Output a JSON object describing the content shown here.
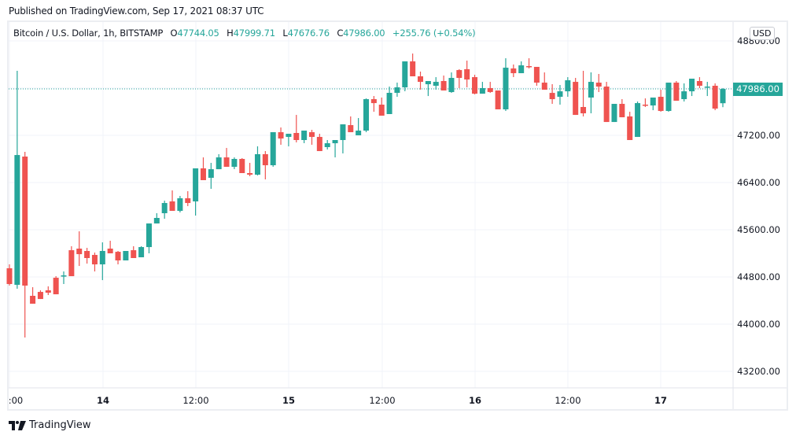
{
  "header": {
    "published": "Published on TradingView.com, Sep 17, 2021 08:37 UTC"
  },
  "legend": {
    "symbol": "Bitcoin / U.S. Dollar, 1h, BITSTAMP",
    "open_label": "O",
    "open": "47744.05",
    "high_label": "H",
    "high": "47999.71",
    "low_label": "L",
    "low": "47676.76",
    "close_label": "C",
    "close": "47986.00",
    "change": "+255.76 (+0.54%)"
  },
  "axis": {
    "currency_badge": "USD",
    "current_price": "47986.00",
    "y_ticks": [
      "48800.00",
      "48000.00",
      "47200.00",
      "46400.00",
      "45600.00",
      "44800.00",
      "44000.00",
      "43200.00"
    ],
    "x_ticks": [
      ":00",
      "14",
      "12:00",
      "15",
      "12:00",
      "16",
      "12:00",
      "17"
    ]
  },
  "footer": {
    "brand": "TradingView"
  },
  "colors": {
    "up": "#26a69a",
    "down": "#ef5350",
    "grid": "#f0f3fa",
    "price_line": "#26a69a"
  },
  "chart_data": {
    "type": "candlestick",
    "title": "Bitcoin / U.S. Dollar, 1h, BITSTAMP",
    "xlabel": "",
    "ylabel": "USD",
    "ylim": [
      43000,
      48900
    ],
    "y_ticks": [
      43200,
      44000,
      44800,
      45600,
      46400,
      47200,
      48000,
      48800
    ],
    "x_tick_labels": [
      ":00",
      "14",
      "12:00",
      "15",
      "12:00",
      "16",
      "12:00",
      "17"
    ],
    "grid": true,
    "current_price": 47986.0,
    "last_candle": {
      "open": 47744.05,
      "high": 47999.71,
      "low": 47676.76,
      "close": 47986.0,
      "change": 255.76,
      "change_pct": 0.54
    },
    "candles_ohlc_px_note": "values are [open, high, low, close] in USD estimated from pixel positions",
    "candles": [
      [
        44947,
        45013,
        44654,
        44680
      ],
      [
        44666,
        48293,
        44600,
        46866
      ],
      [
        46840,
        46920,
        43774,
        44653
      ],
      [
        44480,
        44626,
        44440,
        44346
      ],
      [
        44546,
        44573,
        44533,
        44426
      ],
      [
        44573,
        44640,
        44493,
        44533
      ],
      [
        44786,
        44813,
        44533,
        44506
      ],
      [
        44813,
        44893,
        44680,
        44826
      ],
      [
        45253,
        45320,
        45000,
        44813
      ],
      [
        45280,
        45573,
        44986,
        45186
      ],
      [
        45240,
        45293,
        45026,
        45120
      ],
      [
        45173,
        45213,
        44893,
        45013
      ],
      [
        45013,
        45386,
        44746,
        45240
      ],
      [
        45280,
        45413,
        45226,
        45200
      ],
      [
        45226,
        45240,
        45013,
        45080
      ],
      [
        45080,
        45186,
        45186,
        45240
      ],
      [
        45253,
        45320,
        45160,
        45120
      ],
      [
        45133,
        45320,
        45133,
        45306
      ],
      [
        45306,
        45626,
        45200,
        45706
      ],
      [
        45706,
        45880,
        45786,
        45800
      ],
      [
        45880,
        46093,
        45786,
        46053
      ],
      [
        46080,
        46266,
        45973,
        45920
      ],
      [
        45920,
        46173,
        45893,
        46133
      ],
      [
        46133,
        46253,
        46000,
        46053
      ],
      [
        46080,
        46600,
        45840,
        46640
      ],
      [
        46640,
        46826,
        46586,
        46440
      ],
      [
        46480,
        46733,
        46293,
        46626
      ],
      [
        46626,
        46880,
        46720,
        46826
      ],
      [
        46826,
        46986,
        46773,
        46666
      ],
      [
        46666,
        46826,
        46627,
        46800
      ],
      [
        46800,
        46813,
        46587,
        46560
      ],
      [
        46560,
        46733,
        46507,
        46533
      ],
      [
        46533,
        47013,
        46520,
        46880
      ],
      [
        46880,
        46933,
        46453,
        46693
      ],
      [
        46693,
        47253,
        46667,
        47253
      ],
      [
        47253,
        47333,
        47040,
        47146
      ],
      [
        47173,
        47226,
        47013,
        47226
      ],
      [
        47240,
        47546,
        47080,
        47120
      ],
      [
        47120,
        47280,
        47067,
        47280
      ],
      [
        47253,
        47293,
        47040,
        47173
      ],
      [
        47173,
        47226,
        46960,
        46933
      ],
      [
        47000,
        47120,
        46960,
        47066
      ],
      [
        47066,
        47120,
        46826,
        47120
      ],
      [
        47120,
        47280,
        46893,
        47386
      ],
      [
        47373,
        47520,
        47333,
        47253
      ],
      [
        47200,
        47493,
        47320,
        47280
      ],
      [
        47280,
        47826,
        47253,
        47813
      ],
      [
        47813,
        47866,
        47600,
        47746
      ],
      [
        47720,
        47840,
        47653,
        47533
      ],
      [
        47560,
        48026,
        47627,
        47920
      ],
      [
        47920,
        48093,
        47853,
        48013
      ],
      [
        48013,
        48346,
        47947,
        48453
      ],
      [
        48453,
        48586,
        48346,
        48200
      ],
      [
        48200,
        48280,
        47974,
        48106
      ],
      [
        48066,
        48093,
        47866,
        48120
      ],
      [
        48040,
        48186,
        47973,
        48106
      ],
      [
        48120,
        48213,
        47999,
        47960
      ],
      [
        47933,
        48266,
        47920,
        48173
      ],
      [
        48306,
        48320,
        48000,
        48173
      ],
      [
        48320,
        48466,
        48013,
        48146
      ],
      [
        48186,
        48226,
        47894,
        47906
      ],
      [
        47906,
        48106,
        47999,
        48000
      ],
      [
        48000,
        48106,
        47920,
        47934
      ],
      [
        47960,
        47960,
        47679,
        47640
      ],
      [
        47640,
        48506,
        47613,
        48346
      ],
      [
        48333,
        48400,
        48187,
        48253
      ],
      [
        48253,
        48453,
        48253,
        48386
      ],
      [
        48373,
        48506,
        48333,
        48360
      ],
      [
        48360,
        48360,
        48040,
        48093
      ],
      [
        48093,
        48266,
        47989,
        47973
      ],
      [
        47919,
        48067,
        47733,
        47813
      ],
      [
        47853,
        48053,
        47720,
        47946
      ],
      [
        47946,
        48186,
        47853,
        48133
      ],
      [
        48106,
        48173,
        47573,
        47546
      ],
      [
        47680,
        48293,
        47520,
        47573
      ],
      [
        47840,
        48267,
        47573,
        48106
      ],
      [
        48093,
        48240,
        47933,
        48026
      ],
      [
        48026,
        48106,
        47480,
        47426
      ],
      [
        47426,
        47453,
        47453,
        47733
      ],
      [
        47733,
        47813,
        47599,
        47506
      ],
      [
        47520,
        47599,
        47200,
        47120
      ],
      [
        47173,
        47773,
        47173,
        47746
      ],
      [
        47720,
        47826,
        47680,
        47706
      ],
      [
        47706,
        47813,
        47626,
        47840
      ],
      [
        47853,
        47973,
        47600,
        47613
      ],
      [
        47613,
        48067,
        47600,
        48093
      ],
      [
        48093,
        48120,
        47800,
        47786
      ],
      [
        47813,
        48080,
        47773,
        47946
      ],
      [
        47946,
        48146,
        47866,
        48160
      ],
      [
        48120,
        48186,
        48000,
        48040
      ],
      [
        48013,
        48106,
        47866,
        48026
      ],
      [
        48040,
        48080,
        47626,
        47653
      ],
      [
        47744,
        47999,
        47677,
        47986
      ]
    ]
  }
}
